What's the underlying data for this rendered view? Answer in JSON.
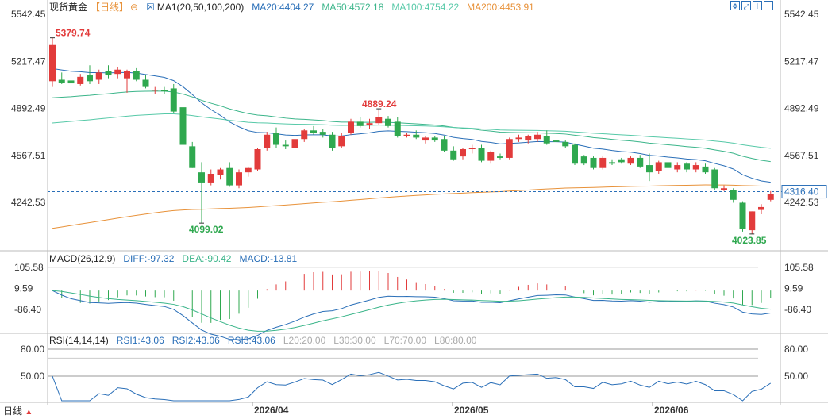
{
  "header": {
    "symbol": "现货黄金",
    "period": "【日线】",
    "ma_title": "MA1(20,50,100,200)",
    "ma20": "MA20:4404.27",
    "ma50": "MA50:4572.18",
    "ma100": "MA100:4754.22",
    "ma200": "MA200:4453.91"
  },
  "macd_header": {
    "title": "MACD(26,12,9)",
    "diff": "DIFF:-97.32",
    "dea": "DEA:-90.42",
    "macd": "MACD:-13.81"
  },
  "rsi_header": {
    "title": "RSI(14,14,14)",
    "rsi1": "RSI1:43.06",
    "rsi2": "RSI2:43.06",
    "rsi3": "RSI3:43.06",
    "l20": "L20:20.00",
    "l30": "L30:30.00",
    "l70": "L70:70.00",
    "l80": "L80:80.00"
  },
  "footer": {
    "label": "日线"
  },
  "colors": {
    "up": "#e23b3b",
    "down": "#2fa84f",
    "ma20": "#2a6fb8",
    "ma50": "#3bb58a",
    "ma100": "#57c9a8",
    "ma200": "#e8923a",
    "current": "#2a6fb8"
  },
  "chart_data": {
    "type": "candlestick",
    "price_ticks": [
      "5542.45",
      "5217.47",
      "4892.49",
      "4567.51",
      "4242.53"
    ],
    "ylim": [
      4000,
      5600
    ],
    "current_price": "4316.40",
    "annotations": {
      "high": "5379.74",
      "mid_high": "4889.24",
      "low1": "4099.02",
      "low2": "4023.85"
    },
    "x_labels": [
      "2026/04",
      "2026/05",
      "2026/06"
    ],
    "candles": [
      {
        "o": 5080,
        "h": 5379.74,
        "l": 5040,
        "c": 5330
      },
      {
        "o": 5090,
        "h": 5140,
        "l": 5060,
        "c": 5070
      },
      {
        "o": 5085,
        "h": 5120,
        "l": 5040,
        "c": 5065
      },
      {
        "o": 5060,
        "h": 5130,
        "l": 5050,
        "c": 5110
      },
      {
        "o": 5120,
        "h": 5190,
        "l": 5060,
        "c": 5080
      },
      {
        "o": 5090,
        "h": 5160,
        "l": 5060,
        "c": 5140
      },
      {
        "o": 5150,
        "h": 5190,
        "l": 5100,
        "c": 5120
      },
      {
        "o": 5130,
        "h": 5180,
        "l": 5100,
        "c": 5160
      },
      {
        "o": 5100,
        "h": 5160,
        "l": 5000,
        "c": 5150
      },
      {
        "o": 5150,
        "h": 5170,
        "l": 5080,
        "c": 5090
      },
      {
        "o": 5090,
        "h": 5120,
        "l": 5030,
        "c": 5040
      },
      {
        "o": 5020,
        "h": 5040,
        "l": 4990,
        "c": 5020
      },
      {
        "o": 5020,
        "h": 5040,
        "l": 4990,
        "c": 5010
      },
      {
        "o": 5030,
        "h": 5060,
        "l": 4860,
        "c": 4870
      },
      {
        "o": 4900,
        "h": 4920,
        "l": 4610,
        "c": 4640
      },
      {
        "o": 4630,
        "h": 4660,
        "l": 4480,
        "c": 4480
      },
      {
        "o": 4450,
        "h": 4520,
        "l": 4099.02,
        "c": 4380
      },
      {
        "o": 4380,
        "h": 4470,
        "l": 4360,
        "c": 4440
      },
      {
        "o": 4430,
        "h": 4480,
        "l": 4400,
        "c": 4470
      },
      {
        "o": 4480,
        "h": 4520,
        "l": 4350,
        "c": 4360
      },
      {
        "o": 4360,
        "h": 4470,
        "l": 4340,
        "c": 4450
      },
      {
        "o": 4450,
        "h": 4490,
        "l": 4420,
        "c": 4480
      },
      {
        "o": 4470,
        "h": 4620,
        "l": 4460,
        "c": 4610
      },
      {
        "o": 4620,
        "h": 4730,
        "l": 4600,
        "c": 4710
      },
      {
        "o": 4720,
        "h": 4760,
        "l": 4620,
        "c": 4640
      },
      {
        "o": 4640,
        "h": 4670,
        "l": 4610,
        "c": 4630
      },
      {
        "o": 4620,
        "h": 4680,
        "l": 4590,
        "c": 4680
      },
      {
        "o": 4680,
        "h": 4750,
        "l": 4660,
        "c": 4740
      },
      {
        "o": 4740,
        "h": 4770,
        "l": 4710,
        "c": 4720
      },
      {
        "o": 4730,
        "h": 4750,
        "l": 4690,
        "c": 4710
      },
      {
        "o": 4710,
        "h": 4730,
        "l": 4600,
        "c": 4620
      },
      {
        "o": 4630,
        "h": 4720,
        "l": 4620,
        "c": 4700
      },
      {
        "o": 4720,
        "h": 4820,
        "l": 4710,
        "c": 4800
      },
      {
        "o": 4800,
        "h": 4830,
        "l": 4760,
        "c": 4770
      },
      {
        "o": 4780,
        "h": 4820,
        "l": 4750,
        "c": 4790
      },
      {
        "o": 4790,
        "h": 4889.24,
        "l": 4780,
        "c": 4830
      },
      {
        "o": 4820,
        "h": 4840,
        "l": 4760,
        "c": 4770
      },
      {
        "o": 4800,
        "h": 4830,
        "l": 4690,
        "c": 4700
      },
      {
        "o": 4700,
        "h": 4720,
        "l": 4690,
        "c": 4710
      },
      {
        "o": 4710,
        "h": 4740,
        "l": 4680,
        "c": 4690
      },
      {
        "o": 4670,
        "h": 4700,
        "l": 4650,
        "c": 4690
      },
      {
        "o": 4690,
        "h": 4700,
        "l": 4660,
        "c": 4670
      },
      {
        "o": 4680,
        "h": 4700,
        "l": 4590,
        "c": 4600
      },
      {
        "o": 4600,
        "h": 4630,
        "l": 4530,
        "c": 4540
      },
      {
        "o": 4560,
        "h": 4620,
        "l": 4540,
        "c": 4610
      },
      {
        "o": 4610,
        "h": 4640,
        "l": 4580,
        "c": 4620
      },
      {
        "o": 4620,
        "h": 4640,
        "l": 4520,
        "c": 4530
      },
      {
        "o": 4530,
        "h": 4600,
        "l": 4510,
        "c": 4590
      },
      {
        "o": 4560,
        "h": 4580,
        "l": 4540,
        "c": 4550
      },
      {
        "o": 4550,
        "h": 4690,
        "l": 4540,
        "c": 4680
      },
      {
        "o": 4680,
        "h": 4710,
        "l": 4660,
        "c": 4690
      },
      {
        "o": 4670,
        "h": 4710,
        "l": 4650,
        "c": 4700
      },
      {
        "o": 4680,
        "h": 4730,
        "l": 4660,
        "c": 4710
      },
      {
        "o": 4700,
        "h": 4740,
        "l": 4640,
        "c": 4650
      },
      {
        "o": 4670,
        "h": 4690,
        "l": 4640,
        "c": 4660
      },
      {
        "o": 4660,
        "h": 4670,
        "l": 4620,
        "c": 4630
      },
      {
        "o": 4640,
        "h": 4650,
        "l": 4500,
        "c": 4510
      },
      {
        "o": 4560,
        "h": 4570,
        "l": 4500,
        "c": 4510
      },
      {
        "o": 4550,
        "h": 4560,
        "l": 4470,
        "c": 4480
      },
      {
        "o": 4480,
        "h": 4560,
        "l": 4470,
        "c": 4550
      },
      {
        "o": 4520,
        "h": 4540,
        "l": 4500,
        "c": 4510
      },
      {
        "o": 4540,
        "h": 4550,
        "l": 4510,
        "c": 4520
      },
      {
        "o": 4510,
        "h": 4560,
        "l": 4500,
        "c": 4550
      },
      {
        "o": 4550,
        "h": 4570,
        "l": 4480,
        "c": 4490
      },
      {
        "o": 4500,
        "h": 4580,
        "l": 4390,
        "c": 4450
      },
      {
        "o": 4460,
        "h": 4530,
        "l": 4440,
        "c": 4520
      },
      {
        "o": 4520,
        "h": 4540,
        "l": 4460,
        "c": 4480
      },
      {
        "o": 4470,
        "h": 4520,
        "l": 4450,
        "c": 4500
      },
      {
        "o": 4510,
        "h": 4520,
        "l": 4450,
        "c": 4470
      },
      {
        "o": 4470,
        "h": 4520,
        "l": 4450,
        "c": 4500
      },
      {
        "o": 4490,
        "h": 4510,
        "l": 4440,
        "c": 4450
      },
      {
        "o": 4470,
        "h": 4480,
        "l": 4330,
        "c": 4340
      },
      {
        "o": 4330,
        "h": 4360,
        "l": 4320,
        "c": 4340
      },
      {
        "o": 4330,
        "h": 4340,
        "l": 4240,
        "c": 4260
      },
      {
        "o": 4240,
        "h": 4250,
        "l": 4040,
        "c": 4060
      },
      {
        "o": 4050,
        "h": 4180,
        "l": 4023.85,
        "c": 4180
      },
      {
        "o": 4190,
        "h": 4230,
        "l": 4160,
        "c": 4210
      },
      {
        "o": 4260,
        "h": 4320,
        "l": 4250,
        "c": 4300
      }
    ],
    "macd_ticks": [
      "105.58",
      "9.59",
      "-86.40"
    ],
    "macd_ylim": [
      -150,
      125
    ],
    "rsi_ticks": [
      "80.00",
      "50.00"
    ],
    "rsi_ylim": [
      15,
      90
    ]
  }
}
